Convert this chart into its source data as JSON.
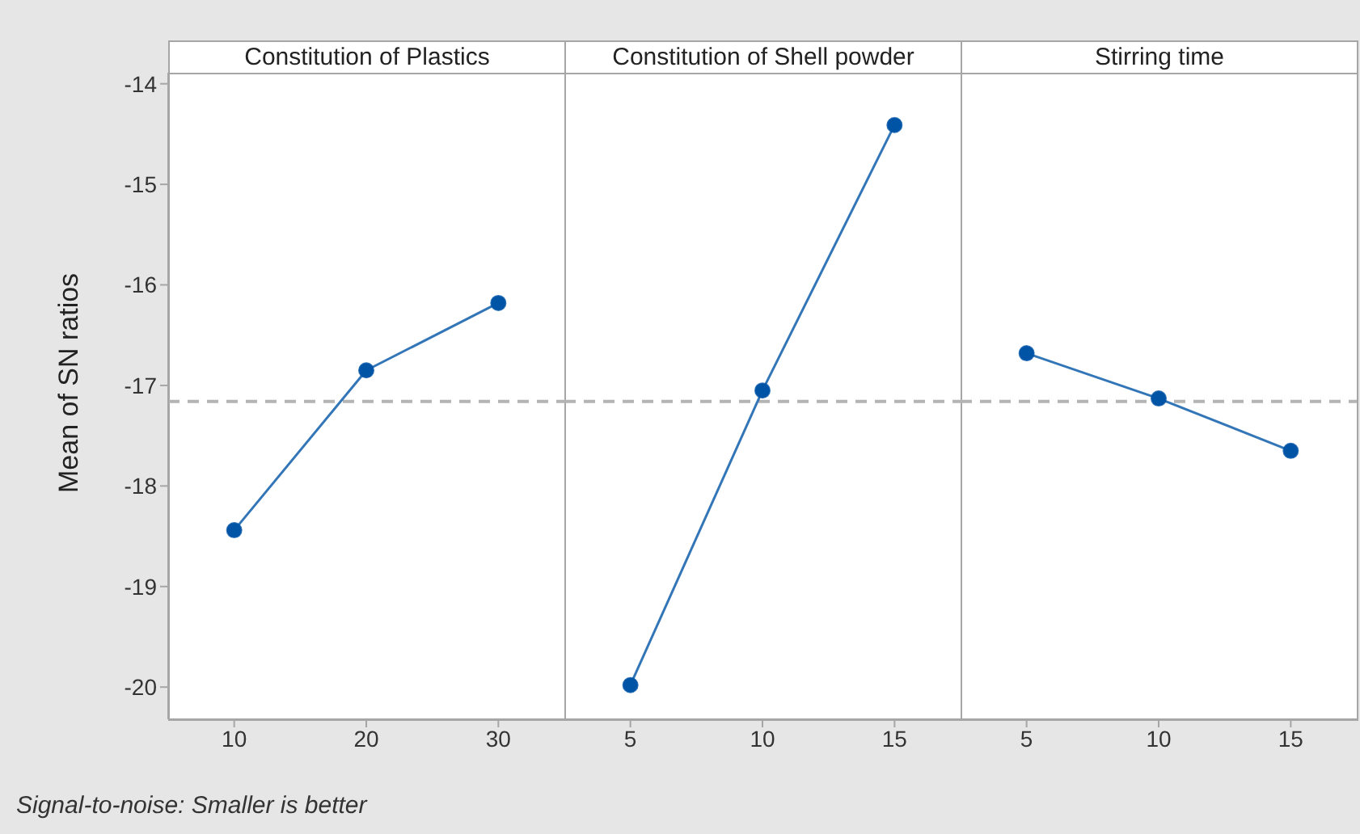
{
  "chart_data": [
    {
      "type": "line",
      "title": "Constitution of Plastics",
      "ylabel": "Mean of SN ratios",
      "x": [
        10,
        20,
        30
      ],
      "xlim": [
        5,
        35
      ],
      "xticks": [
        10,
        20,
        30
      ],
      "ylim": [
        -20.32,
        -13.89
      ],
      "yticks": [
        -20,
        -19,
        -18,
        -17,
        -16,
        -15,
        -14
      ],
      "marker": "circle",
      "series": [
        {
          "color": "#0054a6",
          "values": [
            -18.44,
            -16.85,
            -16.18
          ]
        }
      ],
      "ref_lines": [
        {
          "axis": "y",
          "value": -17.16,
          "color": "#b4b4b4",
          "line_style": "dashed"
        }
      ],
      "annotations": [
        "Signal-to-noise: Smaller is better"
      ]
    },
    {
      "type": "line",
      "title": "Constitution of Shell powder",
      "x": [
        5,
        10,
        15
      ],
      "xlim": [
        2.5,
        17.5
      ],
      "xticks": [
        5,
        10,
        15
      ],
      "ylim": [
        -20.32,
        -13.89
      ],
      "tick_labels": "x",
      "marker": "circle",
      "series": [
        {
          "color": "#0054a6",
          "values": [
            -19.98,
            -17.05,
            -14.41
          ]
        }
      ],
      "ref_lines": [
        {
          "axis": "y",
          "value": -17.16,
          "color": "#b4b4b4",
          "line_style": "dashed"
        }
      ]
    },
    {
      "type": "line",
      "title": "Stirring time",
      "x": [
        5,
        10,
        15
      ],
      "xlim": [
        2.5,
        17.5
      ],
      "xticks": [
        5,
        10,
        15
      ],
      "ylim": [
        -20.32,
        -13.89
      ],
      "tick_labels": "x",
      "marker": "circle",
      "series": [
        {
          "color": "#0054a6",
          "values": [
            -16.68,
            -17.13,
            -17.65
          ]
        }
      ],
      "ref_lines": [
        {
          "axis": "y",
          "value": -17.16,
          "color": "#b4b4b4",
          "line_style": "dashed"
        }
      ]
    }
  ]
}
